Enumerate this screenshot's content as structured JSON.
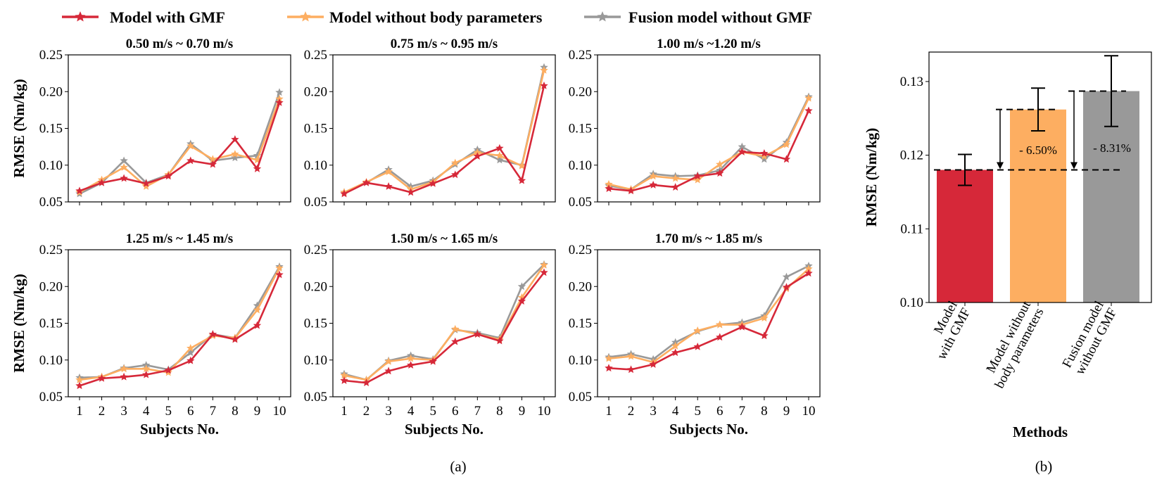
{
  "legend": [
    {
      "name": "Model with GMF",
      "color": "#d62839"
    },
    {
      "name": "Model without body parameters",
      "color": "#fdae61"
    },
    {
      "name": "Fusion model without GMF",
      "color": "#999999"
    }
  ],
  "panel_labels": {
    "a": "(a)",
    "b": "(b)"
  },
  "chart_data": [
    {
      "type": "line",
      "title": "0.50 m/s ~ 0.70 m/s",
      "xlabel": "",
      "ylabel": "RMSE (Nm/kg)",
      "ylim": [
        0.05,
        0.25
      ],
      "yticks": [
        "0.05",
        "0.10",
        "0.15",
        "0.20",
        "0.25"
      ],
      "x": [
        1,
        2,
        3,
        4,
        5,
        6,
        7,
        8,
        9,
        10
      ],
      "series": [
        {
          "name": "Model with GMF",
          "values": [
            0.065,
            0.076,
            0.082,
            0.075,
            0.085,
            0.106,
            0.101,
            0.135,
            0.095,
            0.185
          ]
        },
        {
          "name": "Model without body parameters",
          "values": [
            0.063,
            0.08,
            0.097,
            0.071,
            0.087,
            0.126,
            0.108,
            0.115,
            0.107,
            0.19
          ]
        },
        {
          "name": "Fusion model without GMF",
          "values": [
            0.061,
            0.076,
            0.106,
            0.076,
            0.087,
            0.129,
            0.106,
            0.11,
            0.113,
            0.199
          ]
        }
      ]
    },
    {
      "type": "line",
      "title": "0.75 m/s ~ 0.95 m/s",
      "xlabel": "",
      "ylabel": "",
      "ylim": [
        0.05,
        0.25
      ],
      "yticks": [
        "0.05",
        "0.10",
        "0.15",
        "0.20",
        "0.25"
      ],
      "x": [
        1,
        2,
        3,
        4,
        5,
        6,
        7,
        8,
        9,
        10
      ],
      "series": [
        {
          "name": "Model with GMF",
          "values": [
            0.061,
            0.076,
            0.071,
            0.063,
            0.075,
            0.087,
            0.112,
            0.123,
            0.079,
            0.208
          ]
        },
        {
          "name": "Model without body parameters",
          "values": [
            0.063,
            0.077,
            0.091,
            0.067,
            0.077,
            0.103,
            0.117,
            0.113,
            0.099,
            0.229
          ]
        },
        {
          "name": "Fusion model without GMF",
          "values": [
            0.063,
            0.076,
            0.094,
            0.071,
            0.079,
            0.101,
            0.121,
            0.107,
            0.1,
            0.233
          ]
        }
      ]
    },
    {
      "type": "line",
      "title": "1.00 m/s ~1.20 m/s",
      "xlabel": "",
      "ylabel": "",
      "ylim": [
        0.05,
        0.25
      ],
      "yticks": [
        "0.05",
        "0.10",
        "0.15",
        "0.20",
        "0.25"
      ],
      "x": [
        1,
        2,
        3,
        4,
        5,
        6,
        7,
        8,
        9,
        10
      ],
      "series": [
        {
          "name": "Model with GMF",
          "values": [
            0.068,
            0.065,
            0.073,
            0.07,
            0.085,
            0.089,
            0.118,
            0.116,
            0.108,
            0.174
          ]
        },
        {
          "name": "Model without body parameters",
          "values": [
            0.074,
            0.067,
            0.085,
            0.082,
            0.08,
            0.101,
            0.118,
            0.112,
            0.128,
            0.191
          ]
        },
        {
          "name": "Fusion model without GMF",
          "values": [
            0.072,
            0.067,
            0.088,
            0.085,
            0.086,
            0.093,
            0.125,
            0.108,
            0.131,
            0.193
          ]
        }
      ]
    },
    {
      "type": "line",
      "title": "1.25 m/s ~ 1.45 m/s",
      "xlabel": "Subjects No.",
      "ylabel": "RMSE (Nm/kg)",
      "ylim": [
        0.05,
        0.25
      ],
      "yticks": [
        "0.05",
        "0.10",
        "0.15",
        "0.20",
        "0.25"
      ],
      "x": [
        1,
        2,
        3,
        4,
        5,
        6,
        7,
        8,
        9,
        10
      ],
      "series": [
        {
          "name": "Model with GMF",
          "values": [
            0.065,
            0.075,
            0.077,
            0.08,
            0.086,
            0.099,
            0.135,
            0.128,
            0.147,
            0.216
          ]
        },
        {
          "name": "Model without body parameters",
          "values": [
            0.073,
            0.077,
            0.088,
            0.088,
            0.083,
            0.116,
            0.133,
            0.13,
            0.168,
            0.225
          ]
        },
        {
          "name": "Fusion model without GMF",
          "values": [
            0.076,
            0.077,
            0.089,
            0.093,
            0.087,
            0.11,
            0.135,
            0.13,
            0.174,
            0.227
          ]
        }
      ]
    },
    {
      "type": "line",
      "title": "1.50 m/s ~ 1.65 m/s",
      "xlabel": "Subjects No.",
      "ylabel": "",
      "ylim": [
        0.05,
        0.25
      ],
      "yticks": [
        "0.05",
        "0.10",
        "0.15",
        "0.20",
        "0.25"
      ],
      "x": [
        1,
        2,
        3,
        4,
        5,
        6,
        7,
        8,
        9,
        10
      ],
      "series": [
        {
          "name": "Model with GMF",
          "values": [
            0.072,
            0.069,
            0.085,
            0.093,
            0.098,
            0.125,
            0.135,
            0.126,
            0.18,
            0.219
          ]
        },
        {
          "name": "Model without body parameters",
          "values": [
            0.079,
            0.073,
            0.098,
            0.102,
            0.1,
            0.142,
            0.135,
            0.128,
            0.185,
            0.229
          ]
        },
        {
          "name": "Fusion model without GMF",
          "values": [
            0.081,
            0.073,
            0.099,
            0.106,
            0.101,
            0.141,
            0.137,
            0.13,
            0.2,
            0.23
          ]
        }
      ]
    },
    {
      "type": "line",
      "title": "1.70 m/s ~ 1.85 m/s",
      "xlabel": "Subjects No.",
      "ylabel": "",
      "ylim": [
        0.05,
        0.25
      ],
      "yticks": [
        "0.05",
        "0.10",
        "0.15",
        "0.20",
        "0.25"
      ],
      "x": [
        1,
        2,
        3,
        4,
        5,
        6,
        7,
        8,
        9,
        10
      ],
      "series": [
        {
          "name": "Model with GMF",
          "values": [
            0.089,
            0.087,
            0.094,
            0.11,
            0.118,
            0.131,
            0.145,
            0.133,
            0.199,
            0.218
          ]
        },
        {
          "name": "Model without body parameters",
          "values": [
            0.102,
            0.105,
            0.097,
            0.119,
            0.14,
            0.148,
            0.148,
            0.157,
            0.197,
            0.224
          ]
        },
        {
          "name": "Fusion model without GMF",
          "values": [
            0.104,
            0.108,
            0.101,
            0.124,
            0.139,
            0.148,
            0.151,
            0.16,
            0.213,
            0.228
          ]
        }
      ]
    },
    {
      "type": "bar",
      "title": "",
      "xlabel": "Methods",
      "ylabel": "RMSE (Nm/kg)",
      "ylim": [
        0.1,
        0.134
      ],
      "yticks": [
        "0.10",
        "0.11",
        "0.12",
        "0.13"
      ],
      "categories": [
        "Model\nwith GMF",
        "Model without\nbody parameters",
        "Fusion model\nwithout GMF"
      ],
      "values": [
        0.118,
        0.1262,
        0.1287
      ],
      "errors": [
        0.0021,
        0.0029,
        0.0048
      ],
      "colors": [
        "#d62839",
        "#fdae61",
        "#999999"
      ],
      "annotations": [
        "- 6.50%",
        "- 8.31%"
      ]
    }
  ]
}
